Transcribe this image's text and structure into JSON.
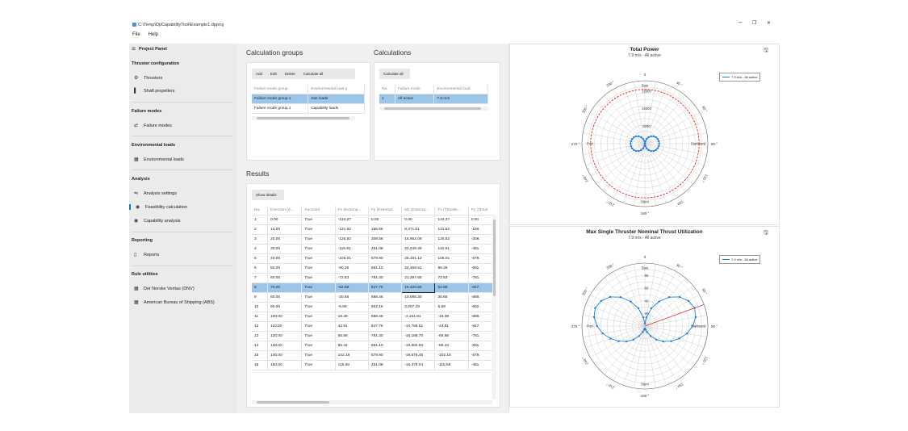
{
  "window": {
    "path": "C:\\Temp\\DpCapabilityTool\\Example1.dpproj",
    "minimize": "–",
    "maximize": "❐",
    "close": "✕"
  },
  "menu": [
    "File",
    "Help"
  ],
  "sidebar": {
    "header": "Project Panel",
    "header_icon": "☰",
    "groups": [
      {
        "title": "Thruster configuration",
        "items": [
          {
            "icon": "⚙",
            "label": "Thrusters"
          },
          {
            "icon": "▌",
            "label": "Shaft propellers"
          }
        ]
      },
      {
        "title": "Failure modes",
        "items": [
          {
            "icon": "⇄",
            "label": "Failure modes"
          }
        ]
      },
      {
        "title": "Environmental loads",
        "items": [
          {
            "icon": "▦",
            "label": "Environmental loads"
          }
        ]
      },
      {
        "title": "Analysis",
        "items": [
          {
            "icon": "⇋",
            "label": "Analysis settings"
          },
          {
            "icon": "◉",
            "label": "Feasibility calculation"
          },
          {
            "icon": "◉",
            "label": "Capability analysis"
          }
        ]
      },
      {
        "title": "Reporting",
        "items": [
          {
            "icon": "▯",
            "label": "Reports"
          }
        ]
      },
      {
        "title": "Rule utilities",
        "items": [
          {
            "icon": "▦",
            "label": "Det Norske Veritas (DNV)"
          },
          {
            "icon": "▦",
            "label": "American Bureau of Shipping (ABS)"
          }
        ]
      }
    ]
  },
  "calc_groups": {
    "title": "Calculation groups",
    "buttons": [
      "Add",
      "Edit",
      "Delete",
      "Calculate all"
    ],
    "columns": [
      "Failure mode group",
      "Environmental load g"
    ],
    "rows": [
      [
        "Failure mode group 1",
        "Site loads"
      ],
      [
        "Failure mode group 1",
        "Capability loads"
      ]
    ]
  },
  "calculations": {
    "title": "Calculations",
    "buttons": [
      "Calculate all"
    ],
    "columns": [
      "No.",
      "Failure mode",
      "Environmental load"
    ],
    "rows": [
      [
        "1",
        "All active",
        "7.9 m/s"
      ]
    ]
  },
  "results": {
    "title": "Results",
    "buttons": [
      "Show details"
    ],
    "columns": [
      "No.",
      "Direction (d...",
      "Succeed",
      "Fx (Externa...",
      "Fy (External...",
      "Mz (Externa...",
      "Fx (Thruste...",
      "Fy (Thrus"
    ],
    "rows": [
      [
        "1",
        "0.00",
        "True",
        "-134.27",
        "0.00",
        "0.00",
        "134.27",
        "0.00"
      ],
      [
        "2",
        "10.00",
        "True",
        "-131.62",
        "156.66",
        "8,471.01",
        "131.62",
        "-156."
      ],
      [
        "3",
        "20.00",
        "True",
        "-125.82",
        "308.56",
        "15,952.09",
        "125.82",
        "-308."
      ],
      [
        "4",
        "30.00",
        "True",
        "-116.91",
        "451.08",
        "22,249.49",
        "116.91",
        "-451."
      ],
      [
        "5",
        "40.00",
        "True",
        "-105.01",
        "579.90",
        "25,181.12",
        "105.01",
        "-579."
      ],
      [
        "6",
        "50.00",
        "True",
        "-90.26",
        "691.10",
        "24,468.51",
        "90.26",
        "-691."
      ],
      [
        "7",
        "60.00",
        "True",
        "-72.83",
        "781.30",
        "21,397.65",
        "72.83",
        "-781."
      ],
      [
        "8",
        "70.00",
        "True",
        "-52.88",
        "847.76",
        "16,420.55",
        "52.88",
        "-847."
      ],
      [
        "9",
        "80.00",
        "True",
        "-30.65",
        "888.46",
        "10,085.30",
        "30.65",
        "-888."
      ],
      [
        "10",
        "90.00",
        "True",
        "-6.59",
        "902.16",
        "3,007.29",
        "6.59",
        "-902."
      ],
      [
        "11",
        "100.00",
        "True",
        "18.39",
        "888.46",
        "-4,161.91",
        "-18.39",
        "-888."
      ],
      [
        "12",
        "110.00",
        "True",
        "42.91",
        "847.76",
        "-10,768.51",
        "-42.91",
        "-847."
      ],
      [
        "13",
        "120.00",
        "True",
        "65.56",
        "781.30",
        "-16,188.70",
        "-65.56",
        "-781."
      ],
      [
        "14",
        "130.00",
        "True",
        "85.44",
        "691.10",
        "-19,860.93",
        "-85.44",
        "-691."
      ],
      [
        "15",
        "140.00",
        "True",
        "102.16",
        "579.90",
        "-19,678.46",
        "-102.16",
        "-579."
      ],
      [
        "16",
        "150.00",
        "True",
        "115.58",
        "451.08",
        "-16,378.04",
        "-115.58",
        "-451."
      ]
    ],
    "selected_row": 7
  },
  "chart_data": [
    {
      "type": "polar",
      "title": "Total Power",
      "subtitle": "7.9 m/s - All active",
      "direction_labels": {
        "0": "0",
        "30": "30 °",
        "60": "60 °",
        "90": "90 °",
        "120": "120 °",
        "150": "150 °",
        "180": "180 °",
        "210": "210 °",
        "240": "240 °",
        "270": "270 °",
        "300": "300 °",
        "330": "330 °"
      },
      "axis_names": {
        "bow": "Bow",
        "stern": "Stern",
        "port": "Port",
        "starboard": "Starboard"
      },
      "radial_ticks": [
        "5000",
        "10000",
        "15000"
      ],
      "rmax": 18000,
      "limit": {
        "value": 15500,
        "color": "#e02020"
      },
      "series": [
        {
          "name": "7.9 m/s - All active",
          "color": "#1e7fd9",
          "angles": [
            0,
            10,
            20,
            30,
            40,
            50,
            60,
            70,
            80,
            90,
            100,
            110,
            120,
            130,
            140,
            150,
            160,
            170,
            180,
            190,
            200,
            210,
            220,
            230,
            240,
            250,
            260,
            270,
            280,
            290,
            300,
            310,
            320,
            330,
            340,
            350
          ],
          "values": [
            60,
            700,
            1400,
            2100,
            2750,
            3250,
            3650,
            3900,
            4050,
            4100,
            4050,
            3900,
            3650,
            3250,
            2750,
            2100,
            1400,
            700,
            60,
            700,
            1400,
            2100,
            2750,
            3250,
            3650,
            3900,
            4050,
            4100,
            4050,
            3900,
            3650,
            3250,
            2750,
            2100,
            1400,
            700
          ]
        }
      ]
    },
    {
      "type": "polar",
      "title": "Max Single Thruster Nominal Thrust Utilization",
      "subtitle": "7.9 m/s - All active",
      "direction_labels": {
        "0": "0",
        "30": "30 °",
        "60": "60 °",
        "90": "90 °",
        "120": "120 °",
        "150": "150 °",
        "180": "180 °",
        "210": "210 °",
        "240": "240 °",
        "270": "270 °",
        "300": "300 °",
        "330": "330 °"
      },
      "axis_names": {
        "bow": "Bow",
        "stern": "Stern",
        "port": "Port",
        "starboard": "Starboard"
      },
      "radial_ticks": [
        "20",
        "40",
        "60",
        "80"
      ],
      "rmax": 100,
      "highlight_angle": 70,
      "series": [
        {
          "name": "7.9 m/s - All active",
          "color": "#1e7fd9",
          "angles": [
            0,
            10,
            20,
            30,
            40,
            50,
            60,
            70,
            80,
            90,
            100,
            110,
            120,
            130,
            140,
            150,
            160,
            170,
            180,
            190,
            200,
            210,
            220,
            230,
            240,
            250,
            260,
            270,
            280,
            290,
            300,
            310,
            320,
            330,
            340,
            350
          ],
          "values": [
            4,
            14,
            30,
            45,
            60,
            72,
            80,
            84,
            82,
            76,
            68,
            58,
            48,
            38,
            28,
            18,
            10,
            6,
            4,
            6,
            10,
            18,
            28,
            38,
            48,
            58,
            68,
            76,
            82,
            84,
            80,
            72,
            60,
            45,
            30,
            14
          ]
        }
      ]
    }
  ]
}
